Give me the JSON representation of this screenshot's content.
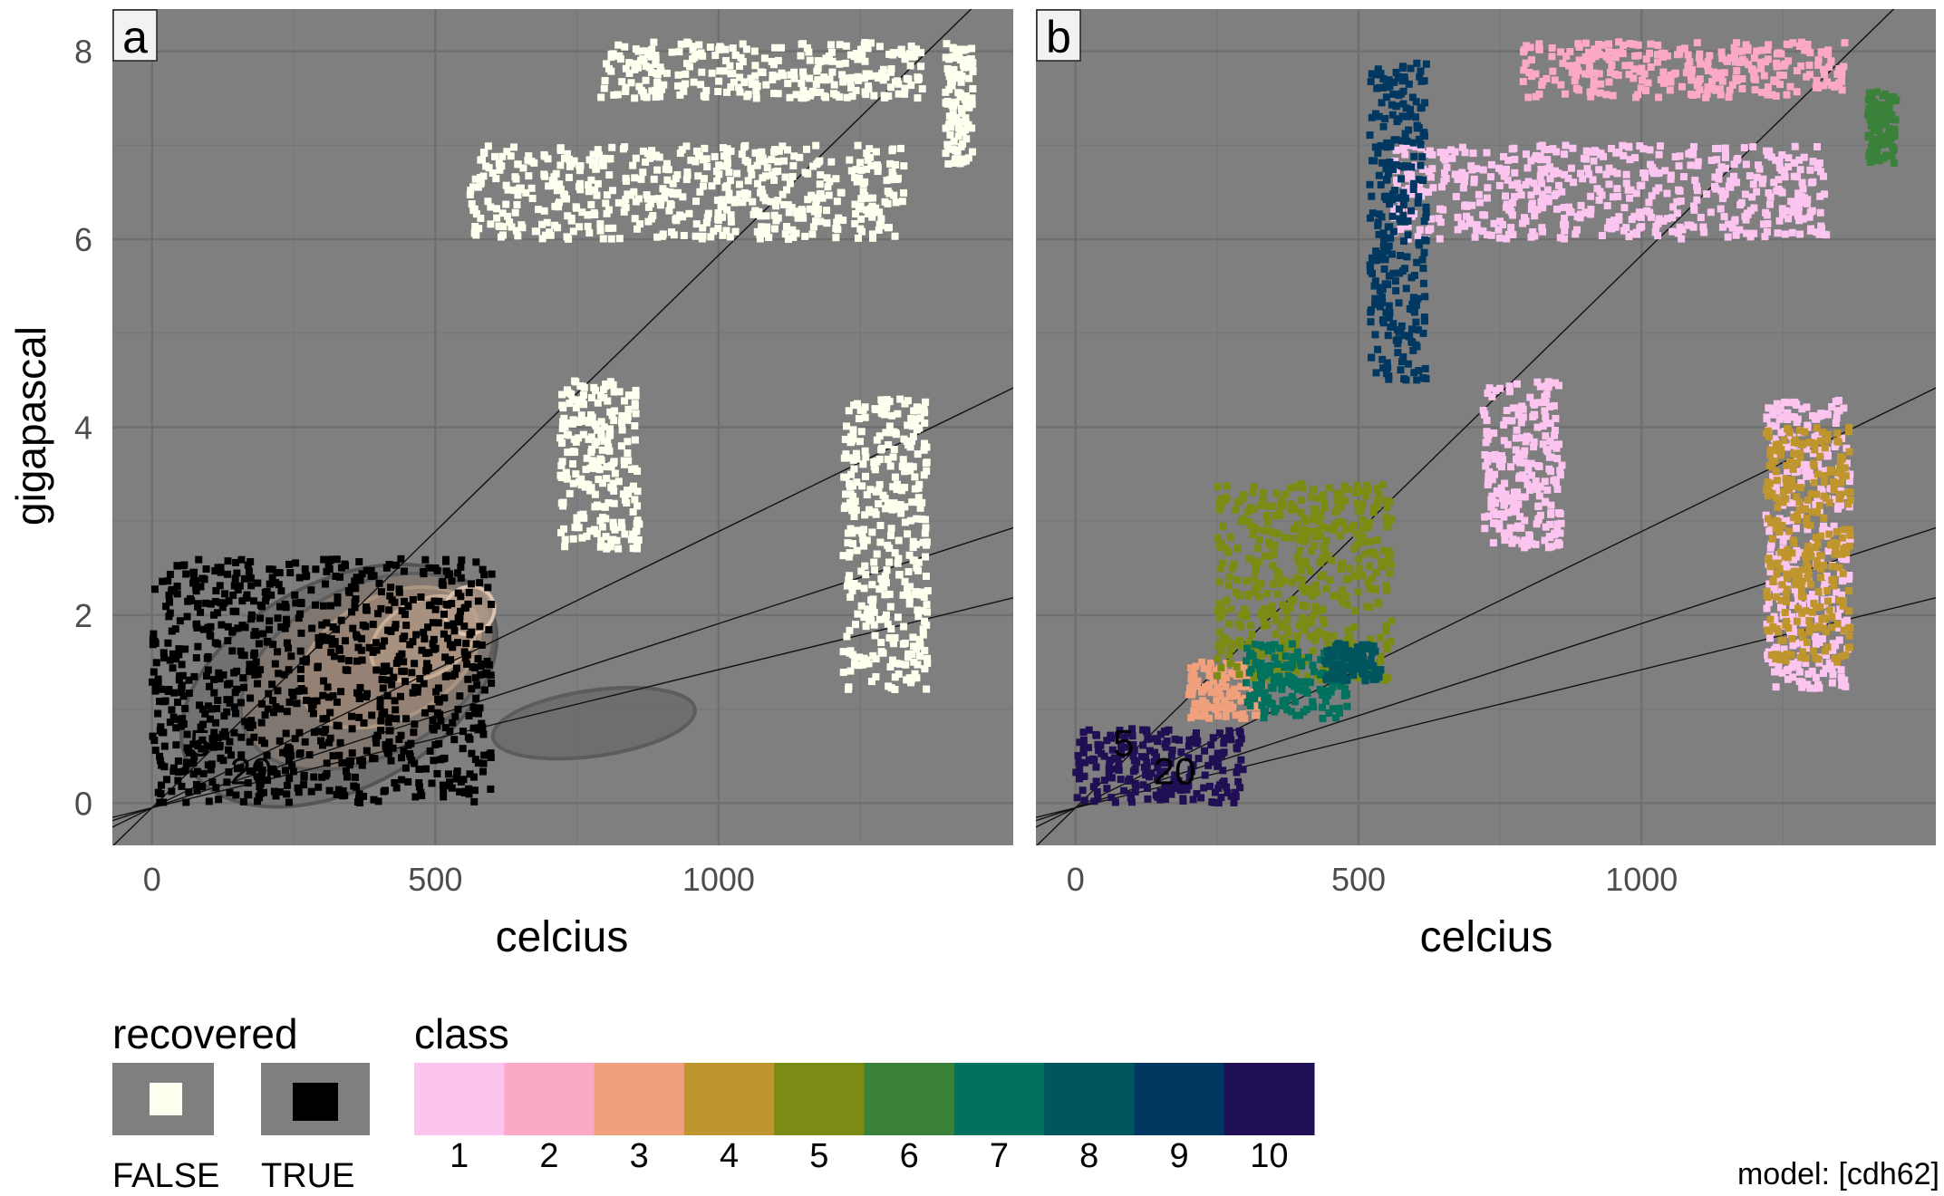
{
  "chart_data": [
    {
      "type": "scatter",
      "panel_label": "a",
      "xlabel": "celcius",
      "ylabel": "gigapascal",
      "xlim": [
        -70,
        1520
      ],
      "ylim": [
        -0.45,
        8.45
      ],
      "x_ticks": [
        "0",
        "500",
        "1000"
      ],
      "x_tick_values": [
        0,
        500,
        1000
      ],
      "y_ticks": [
        "0",
        "2",
        "4",
        "6",
        "8"
      ],
      "y_tick_values": [
        0,
        2,
        4,
        6,
        8
      ],
      "grid": true,
      "reference_lines": [
        {
          "slope_gpa_per_c": 0.00588
        },
        {
          "slope_gpa_per_c": 0.00294
        },
        {
          "slope_gpa_per_c": 0.00196
        },
        {
          "slope_gpa_per_c": 0.00147
        }
      ],
      "line_labels": [
        {
          "text": "5",
          "x": 85,
          "y": 0.5
        },
        {
          "text": "20",
          "x": 175,
          "y": 0.2
        }
      ],
      "series": [
        {
          "name": "FALSE",
          "color": "#fffff0",
          "clusters": [
            {
              "x_range": [
                560,
                1330
              ],
              "y_range": [
                6.0,
                7.0
              ]
            },
            {
              "x_range": [
                790,
                1360
              ],
              "y_range": [
                7.5,
                8.1
              ]
            },
            {
              "x_range": [
                1400,
                1450
              ],
              "y_range": [
                6.8,
                8.1
              ]
            },
            {
              "x_range": [
                1220,
                1370
              ],
              "y_range": [
                1.2,
                4.3
              ]
            },
            {
              "x_range": [
                720,
                860
              ],
              "y_range": [
                2.7,
                4.5
              ]
            }
          ]
        },
        {
          "name": "TRUE",
          "color": "#000000",
          "clusters": [
            {
              "x_range": [
                0,
                600
              ],
              "y_range": [
                0.0,
                2.6
              ]
            }
          ]
        }
      ],
      "density_contours": true
    },
    {
      "type": "scatter",
      "panel_label": "b",
      "xlabel": "celcius",
      "xlim": [
        -70,
        1520
      ],
      "ylim": [
        -0.45,
        8.45
      ],
      "x_ticks": [
        "0",
        "500",
        "1000"
      ],
      "x_tick_values": [
        0,
        500,
        1000
      ],
      "grid": true,
      "line_labels": [
        {
          "text": "5",
          "x": 85,
          "y": 0.5
        },
        {
          "text": "20",
          "x": 175,
          "y": 0.2
        }
      ],
      "series": [
        {
          "name": "1",
          "color": "#fcc5f0",
          "clusters": [
            {
              "x_range": [
                560,
                1330
              ],
              "y_range": [
                6.0,
                7.0
              ]
            },
            {
              "x_range": [
                1220,
                1370
              ],
              "y_range": [
                1.2,
                4.3
              ]
            },
            {
              "x_range": [
                720,
                860
              ],
              "y_range": [
                2.7,
                4.5
              ]
            }
          ]
        },
        {
          "name": "2",
          "color": "#fca9c8",
          "clusters": [
            {
              "x_range": [
                790,
                1360
              ],
              "y_range": [
                7.5,
                8.1
              ]
            }
          ]
        },
        {
          "name": "3",
          "color": "#f0a07c",
          "clusters": [
            {
              "x_range": [
                200,
                330
              ],
              "y_range": [
                0.9,
                1.5
              ]
            }
          ]
        },
        {
          "name": "4",
          "color": "#bf952d",
          "clusters": [
            {
              "x_range": [
                1220,
                1370
              ],
              "y_range": [
                1.5,
                4.0
              ]
            }
          ]
        },
        {
          "name": "5",
          "color": "#7b8b13",
          "clusters": [
            {
              "x_range": [
                250,
                560
              ],
              "y_range": [
                1.3,
                3.4
              ]
            }
          ]
        },
        {
          "name": "6",
          "color": "#3a813a",
          "clusters": [
            {
              "x_range": [
                1400,
                1450
              ],
              "y_range": [
                6.8,
                7.6
              ]
            }
          ]
        },
        {
          "name": "7",
          "color": "#00725e",
          "clusters": [
            {
              "x_range": [
                300,
                480
              ],
              "y_range": [
                0.9,
                1.7
              ]
            }
          ]
        },
        {
          "name": "8",
          "color": "#00555e",
          "clusters": [
            {
              "x_range": [
                440,
                540
              ],
              "y_range": [
                1.3,
                1.7
              ]
            }
          ]
        },
        {
          "name": "9",
          "color": "#003861",
          "clusters": [
            {
              "x_range": [
                520,
                620
              ],
              "y_range": [
                4.5,
                7.9
              ]
            }
          ]
        },
        {
          "name": "10",
          "color": "#200f55",
          "clusters": [
            {
              "x_range": [
                0,
                300
              ],
              "y_range": [
                0.0,
                0.8
              ]
            }
          ]
        }
      ]
    }
  ],
  "legend": {
    "recovered": {
      "title": "recovered",
      "items": [
        {
          "label": "FALSE",
          "color": "#fffff0"
        },
        {
          "label": "TRUE",
          "color": "#000000"
        }
      ]
    },
    "class": {
      "title": "class",
      "items": [
        {
          "label": "1",
          "color": "#fcc5f0"
        },
        {
          "label": "2",
          "color": "#fca9c8"
        },
        {
          "label": "3",
          "color": "#f0a07c"
        },
        {
          "label": "4",
          "color": "#bf952d"
        },
        {
          "label": "5",
          "color": "#7b8b13"
        },
        {
          "label": "6",
          "color": "#3a813a"
        },
        {
          "label": "7",
          "color": "#00725e"
        },
        {
          "label": "8",
          "color": "#00555e"
        },
        {
          "label": "9",
          "color": "#003861"
        },
        {
          "label": "10",
          "color": "#200f55"
        }
      ]
    }
  },
  "caption": "model: [cdh62]",
  "colors": {
    "panel_background": "#7f7f7f",
    "grid_major": "#6f6f6f",
    "grid_minor": "#777777"
  }
}
